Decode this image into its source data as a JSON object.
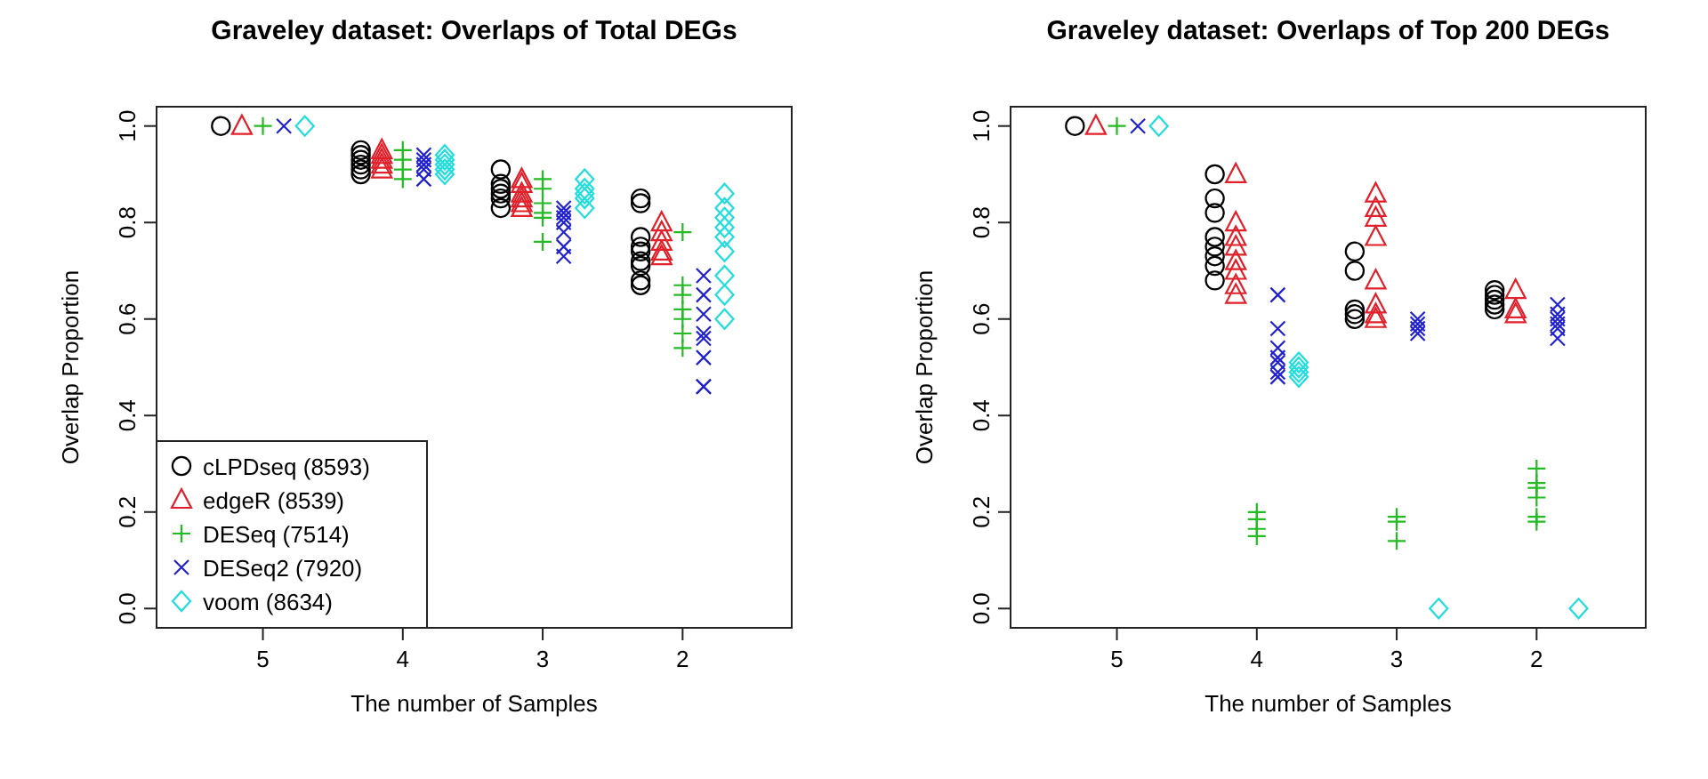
{
  "chart_data": [
    {
      "type": "scatter",
      "title": "Graveley dataset: Overlaps of Total DEGs",
      "xlabel": "The number of Samples",
      "ylabel": "Overlap Proportion",
      "xlim": [
        5.76,
        1.22
      ],
      "xticks": [
        5,
        4,
        3,
        2
      ],
      "ylim": [
        -0.04,
        1.04
      ],
      "yticks": [
        {
          "value": 0,
          "label": "0.0"
        },
        {
          "value": 0.2,
          "label": "0.2"
        },
        {
          "value": 0.4,
          "label": "0.4"
        },
        {
          "value": 0.6,
          "label": "0.6"
        },
        {
          "value": 0.8,
          "label": "0.8"
        },
        {
          "value": 1,
          "label": "1.0"
        }
      ],
      "legend": "bottom left",
      "series": [
        {
          "name": "cLPDseq (8593)",
          "color": "#000000",
          "marker": "circle",
          "x": [
            5.3,
            4.3,
            4.3,
            4.3,
            4.3,
            4.3,
            4.3,
            3.3,
            3.3,
            3.3,
            3.3,
            3.3,
            3.3,
            2.3,
            2.3,
            2.3,
            2.3,
            2.3,
            2.3,
            2.3,
            2.3,
            2.3
          ],
          "values": [
            1,
            0.95,
            0.94,
            0.93,
            0.92,
            0.91,
            0.9,
            0.91,
            0.88,
            0.87,
            0.86,
            0.85,
            0.83,
            0.85,
            0.84,
            0.77,
            0.75,
            0.74,
            0.72,
            0.71,
            0.68,
            0.67
          ]
        },
        {
          "name": "edgeR (8539)",
          "color": "#e0202a",
          "marker": "triangle",
          "x": [
            5.15,
            4.15,
            4.15,
            4.15,
            4.15,
            4.15,
            3.15,
            3.15,
            3.15,
            3.15,
            3.15,
            3.15,
            2.15,
            2.15,
            2.15,
            2.15,
            2.15
          ],
          "values": [
            1,
            0.95,
            0.94,
            0.93,
            0.92,
            0.91,
            0.89,
            0.88,
            0.86,
            0.85,
            0.84,
            0.83,
            0.8,
            0.78,
            0.76,
            0.74,
            0.73
          ]
        },
        {
          "name": "DESeq (7514)",
          "color": "#22bb22",
          "marker": "cross",
          "x": [
            5,
            4,
            4,
            4,
            4,
            3,
            3,
            3,
            3,
            3,
            3,
            2,
            2,
            2,
            2,
            2,
            2,
            2
          ],
          "values": [
            1,
            0.95,
            0.93,
            0.91,
            0.89,
            0.89,
            0.87,
            0.84,
            0.82,
            0.81,
            0.76,
            0.78,
            0.67,
            0.65,
            0.62,
            0.6,
            0.57,
            0.54
          ]
        },
        {
          "name": "DESeq2 (7920)",
          "color": "#2222cc",
          "marker": "x",
          "x": [
            4.85,
            3.85,
            3.85,
            3.85,
            3.85,
            3.85,
            2.85,
            2.85,
            2.85,
            2.85,
            2.85,
            2.85,
            2.85,
            1.85,
            1.85,
            1.85,
            1.85,
            1.85,
            1.85,
            1.85,
            1.85
          ],
          "values": [
            1,
            0.94,
            0.93,
            0.92,
            0.91,
            0.89,
            0.83,
            0.82,
            0.81,
            0.8,
            0.78,
            0.75,
            0.73,
            0.69,
            0.65,
            0.61,
            0.57,
            0.56,
            0.52,
            0.46,
            0.46
          ]
        },
        {
          "name": "voom (8634)",
          "color": "#22dddd",
          "marker": "diamond",
          "x": [
            4.7,
            3.7,
            3.7,
            3.7,
            3.7,
            3.7,
            2.7,
            2.7,
            2.7,
            2.7,
            2.7,
            1.7,
            1.7,
            1.7,
            1.7,
            1.7,
            1.7,
            1.7,
            1.7,
            1.7
          ],
          "values": [
            1,
            0.94,
            0.93,
            0.92,
            0.91,
            0.9,
            0.89,
            0.87,
            0.86,
            0.85,
            0.83,
            0.86,
            0.83,
            0.81,
            0.79,
            0.77,
            0.74,
            0.69,
            0.65,
            0.6
          ]
        }
      ]
    },
    {
      "type": "scatter",
      "title": "Graveley dataset: Overlaps of Top 200 DEGs",
      "xlabel": "The number of Samples",
      "ylabel": "Overlap Proportion",
      "xlim": [
        5.76,
        1.22
      ],
      "xticks": [
        5,
        4,
        3,
        2
      ],
      "ylim": [
        -0.04,
        1.04
      ],
      "yticks": [
        {
          "value": 0,
          "label": "0.0"
        },
        {
          "value": 0.2,
          "label": "0.2"
        },
        {
          "value": 0.4,
          "label": "0.4"
        },
        {
          "value": 0.6,
          "label": "0.6"
        },
        {
          "value": 0.8,
          "label": "0.8"
        },
        {
          "value": 1,
          "label": "1.0"
        }
      ],
      "series": [
        {
          "color": "#000000",
          "marker": "circle",
          "x": [
            5.3,
            4.3,
            4.3,
            4.3,
            4.3,
            4.3,
            4.3,
            4.3,
            4.3,
            3.3,
            3.3,
            3.3,
            3.3,
            3.3,
            2.3,
            2.3,
            2.3,
            2.3,
            2.3
          ],
          "values": [
            1,
            0.9,
            0.85,
            0.82,
            0.77,
            0.75,
            0.73,
            0.71,
            0.68,
            0.74,
            0.7,
            0.62,
            0.61,
            0.6,
            0.66,
            0.65,
            0.64,
            0.63,
            0.62
          ]
        },
        {
          "color": "#e0202a",
          "marker": "triangle",
          "x": [
            5.15,
            4.15,
            4.15,
            4.15,
            4.15,
            4.15,
            4.15,
            4.15,
            4.15,
            3.15,
            3.15,
            3.15,
            3.15,
            3.15,
            3.15,
            3.15,
            3.15,
            2.15,
            2.15,
            2.15
          ],
          "values": [
            1,
            0.9,
            0.8,
            0.77,
            0.75,
            0.72,
            0.7,
            0.67,
            0.65,
            0.86,
            0.83,
            0.81,
            0.77,
            0.68,
            0.63,
            0.61,
            0.6,
            0.66,
            0.62,
            0.61
          ]
        },
        {
          "color": "#22bb22",
          "marker": "cross",
          "x": [
            5,
            4,
            4,
            4,
            4,
            3,
            3,
            3,
            2,
            2,
            2,
            2,
            2,
            2
          ],
          "values": [
            1,
            0.2,
            0.185,
            0.165,
            0.15,
            0.19,
            0.18,
            0.14,
            0.29,
            0.26,
            0.25,
            0.23,
            0.19,
            0.18
          ]
        },
        {
          "color": "#2222cc",
          "marker": "x",
          "x": [
            4.85,
            3.85,
            3.85,
            3.85,
            3.85,
            3.85,
            3.85,
            3.85,
            2.85,
            2.85,
            2.85,
            2.85,
            1.85,
            1.85,
            1.85,
            1.85,
            1.85,
            1.85
          ],
          "values": [
            1,
            0.65,
            0.58,
            0.54,
            0.52,
            0.51,
            0.49,
            0.48,
            0.6,
            0.59,
            0.58,
            0.57,
            0.63,
            0.61,
            0.6,
            0.59,
            0.58,
            0.56
          ]
        },
        {
          "color": "#22dddd",
          "marker": "diamond",
          "x": [
            4.7,
            3.7,
            3.7,
            3.7,
            3.7,
            2.7,
            1.7
          ],
          "values": [
            1,
            0.51,
            0.5,
            0.49,
            0.48,
            0,
            0
          ]
        }
      ]
    }
  ]
}
